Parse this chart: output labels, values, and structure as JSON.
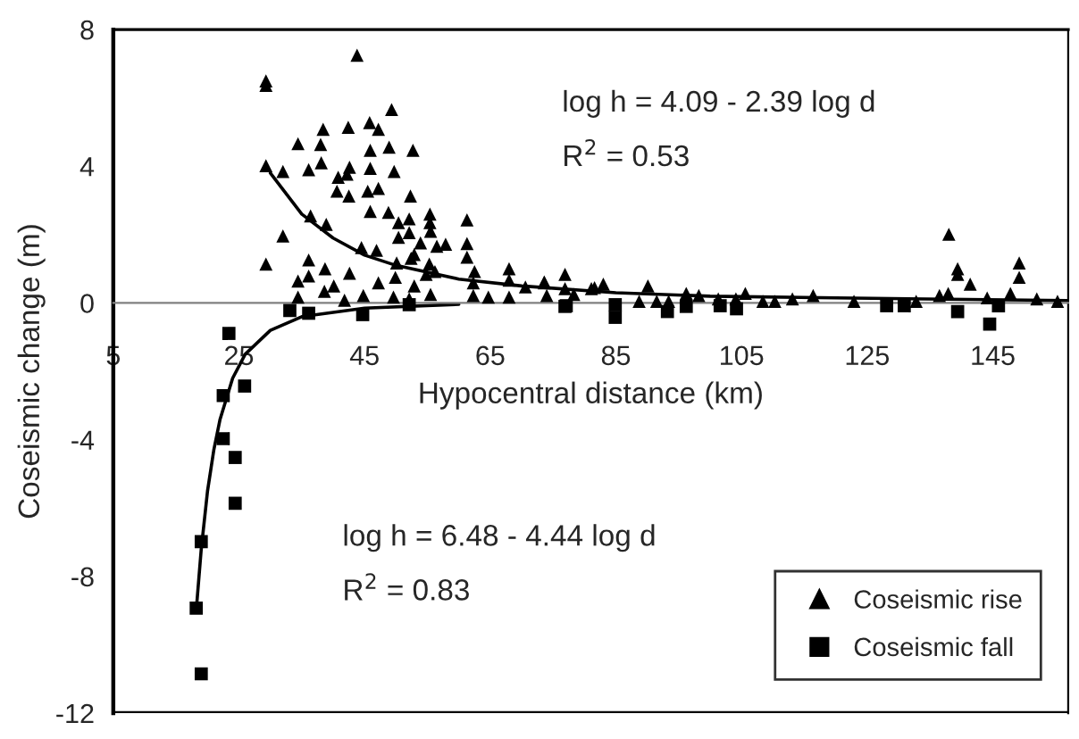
{
  "chart_data": {
    "type": "scatter",
    "xlabel": "Hypocentral distance (km)",
    "ylabel": "Coseismic change (m)",
    "xlim": [
      5,
      157
    ],
    "xticks": [
      5,
      25,
      45,
      65,
      85,
      105,
      125,
      145
    ],
    "ylim": [
      -12,
      8
    ],
    "yticks": [
      -12,
      -8,
      -4,
      0,
      4,
      8
    ],
    "grid": false,
    "legend": "bottom right",
    "annotations": [
      "log h = 4.09 - 2.39 log d",
      "R$^{2}$ = 0.53",
      "log h = 6.48 - 4.44 log d",
      "R$^{2}$ = 0.83"
    ],
    "series": [
      {
        "name": "Coseismic rise",
        "color": "#000000",
        "marker": "triangle",
        "x": [
          29.3,
          29.3,
          43.8,
          49.3,
          29.3,
          32.0,
          36.1,
          34.4,
          38.4,
          42.4,
          45.8,
          47.2,
          52.7,
          48.9,
          45.9,
          38.0,
          38.1,
          40.8,
          42.2,
          42.6,
          40.6,
          42.5,
          45.9,
          49.7,
          45.5,
          47.2,
          52.3,
          45.9,
          48.8,
          36.4,
          38.9,
          50.4,
          52.1,
          55.4,
          55.4,
          61.3,
          32.0,
          29.3,
          44.5,
          46.9,
          50.4,
          52.1,
          53.9,
          55.5,
          56.5,
          57.9,
          61.3,
          61.3,
          36.1,
          38.7,
          42.6,
          36.1,
          34.4,
          50.1,
          52.4,
          52.9,
          55.3,
          56.2,
          54.8,
          47.2,
          49.9,
          52.9,
          62.5,
          62.3,
          68.0,
          68.0,
          70.6,
          73.6,
          76.9,
          76.9,
          81.1,
          40.1,
          38.6,
          34.4,
          41.8,
          44.8,
          49.6,
          52.1,
          55.5,
          62.3,
          64.7,
          68.0,
          74.0,
          138.0,
          139.4,
          139.4,
          141.4,
          149.2,
          149.2,
          147.8,
          136.5,
          137.9,
          73.6,
          78.3,
          81.6,
          83.0,
          90.1,
          88.7,
          91.5,
          93.4,
          96.2,
          98.2,
          101.3,
          104.1,
          105.6,
          108.4,
          110.3,
          113.1,
          116.4,
          122.9,
          132.8,
          152.0,
          155.3,
          144.1
        ],
        "values": [
          6.5,
          6.37,
          7.25,
          5.66,
          4.02,
          3.85,
          3.9,
          4.66,
          5.08,
          5.14,
          5.28,
          5.08,
          4.47,
          4.56,
          4.47,
          4.64,
          4.1,
          3.68,
          3.77,
          3.97,
          3.27,
          3.13,
          3.94,
          3.85,
          3.27,
          3.35,
          3.13,
          2.68,
          2.65,
          2.55,
          2.3,
          2.35,
          2.46,
          2.6,
          2.35,
          2.43,
          1.96,
          1.14,
          1.62,
          1.54,
          1.92,
          2.06,
          1.76,
          2.1,
          1.66,
          1.72,
          1.74,
          1.34,
          1.26,
          1.0,
          0.87,
          0.79,
          0.64,
          1.17,
          1.31,
          1.42,
          1.14,
          0.92,
          0.84,
          0.59,
          0.75,
          0.5,
          0.92,
          0.59,
          1.0,
          0.67,
          0.47,
          0.59,
          0.84,
          0.42,
          0.42,
          0.5,
          0.34,
          0.17,
          0.08,
          0.22,
          0.17,
          0.12,
          0.25,
          0.22,
          0.17,
          0.17,
          0.22,
          2.01,
          1.0,
          0.84,
          0.55,
          1.17,
          0.75,
          0.28,
          0.22,
          0.28,
          0.62,
          0.25,
          0.45,
          0.55,
          0.5,
          0.05,
          0.05,
          0.05,
          0.28,
          0.22,
          0.12,
          0.12,
          0.28,
          0.05,
          0.05,
          0.12,
          0.22,
          0.05,
          0.05,
          0.12,
          0.05,
          0.15
        ]
      },
      {
        "name": "Coseismic fall",
        "color": "#000000",
        "marker": "square",
        "x": [
          33.1,
          36.1,
          44.7,
          52.1,
          77.1,
          23.4,
          25.9,
          22.5,
          22.5,
          24.4,
          24.4,
          19.0,
          18.2,
          19.0,
          84.9,
          84.9,
          93.2,
          104.2,
          96.2,
          76.9,
          128.1,
          130.9,
          139.4,
          144.5,
          145.9,
          101.6
        ],
        "values": [
          -0.22,
          -0.3,
          -0.34,
          -0.05,
          -0.08,
          -0.89,
          -2.43,
          -2.71,
          -3.97,
          -4.52,
          -5.86,
          -6.98,
          -8.93,
          -10.85,
          -0.42,
          -0.05,
          -0.25,
          -0.17,
          -0.1,
          -0.1,
          -0.08,
          -0.08,
          -0.25,
          -0.62,
          -0.08,
          -0.08
        ]
      },
      {
        "type": "line",
        "color": "#000000",
        "x": [
          30,
          35,
          40,
          45,
          50,
          60,
          70,
          85,
          100,
          120,
          157
        ],
        "values": [
          3.8,
          2.6,
          1.9,
          1.4,
          1.1,
          0.7,
          0.5,
          0.3,
          0.2,
          0.15,
          0.07
        ]
      },
      {
        "type": "line",
        "color": "#000000",
        "x": [
          18.2,
          19,
          20,
          21,
          22,
          24,
          26,
          30,
          35,
          45,
          60
        ],
        "values": [
          -9.0,
          -7.2,
          -5.5,
          -4.3,
          -3.4,
          -2.2,
          -1.5,
          -0.8,
          -0.4,
          -0.15,
          -0.04
        ]
      }
    ]
  }
}
